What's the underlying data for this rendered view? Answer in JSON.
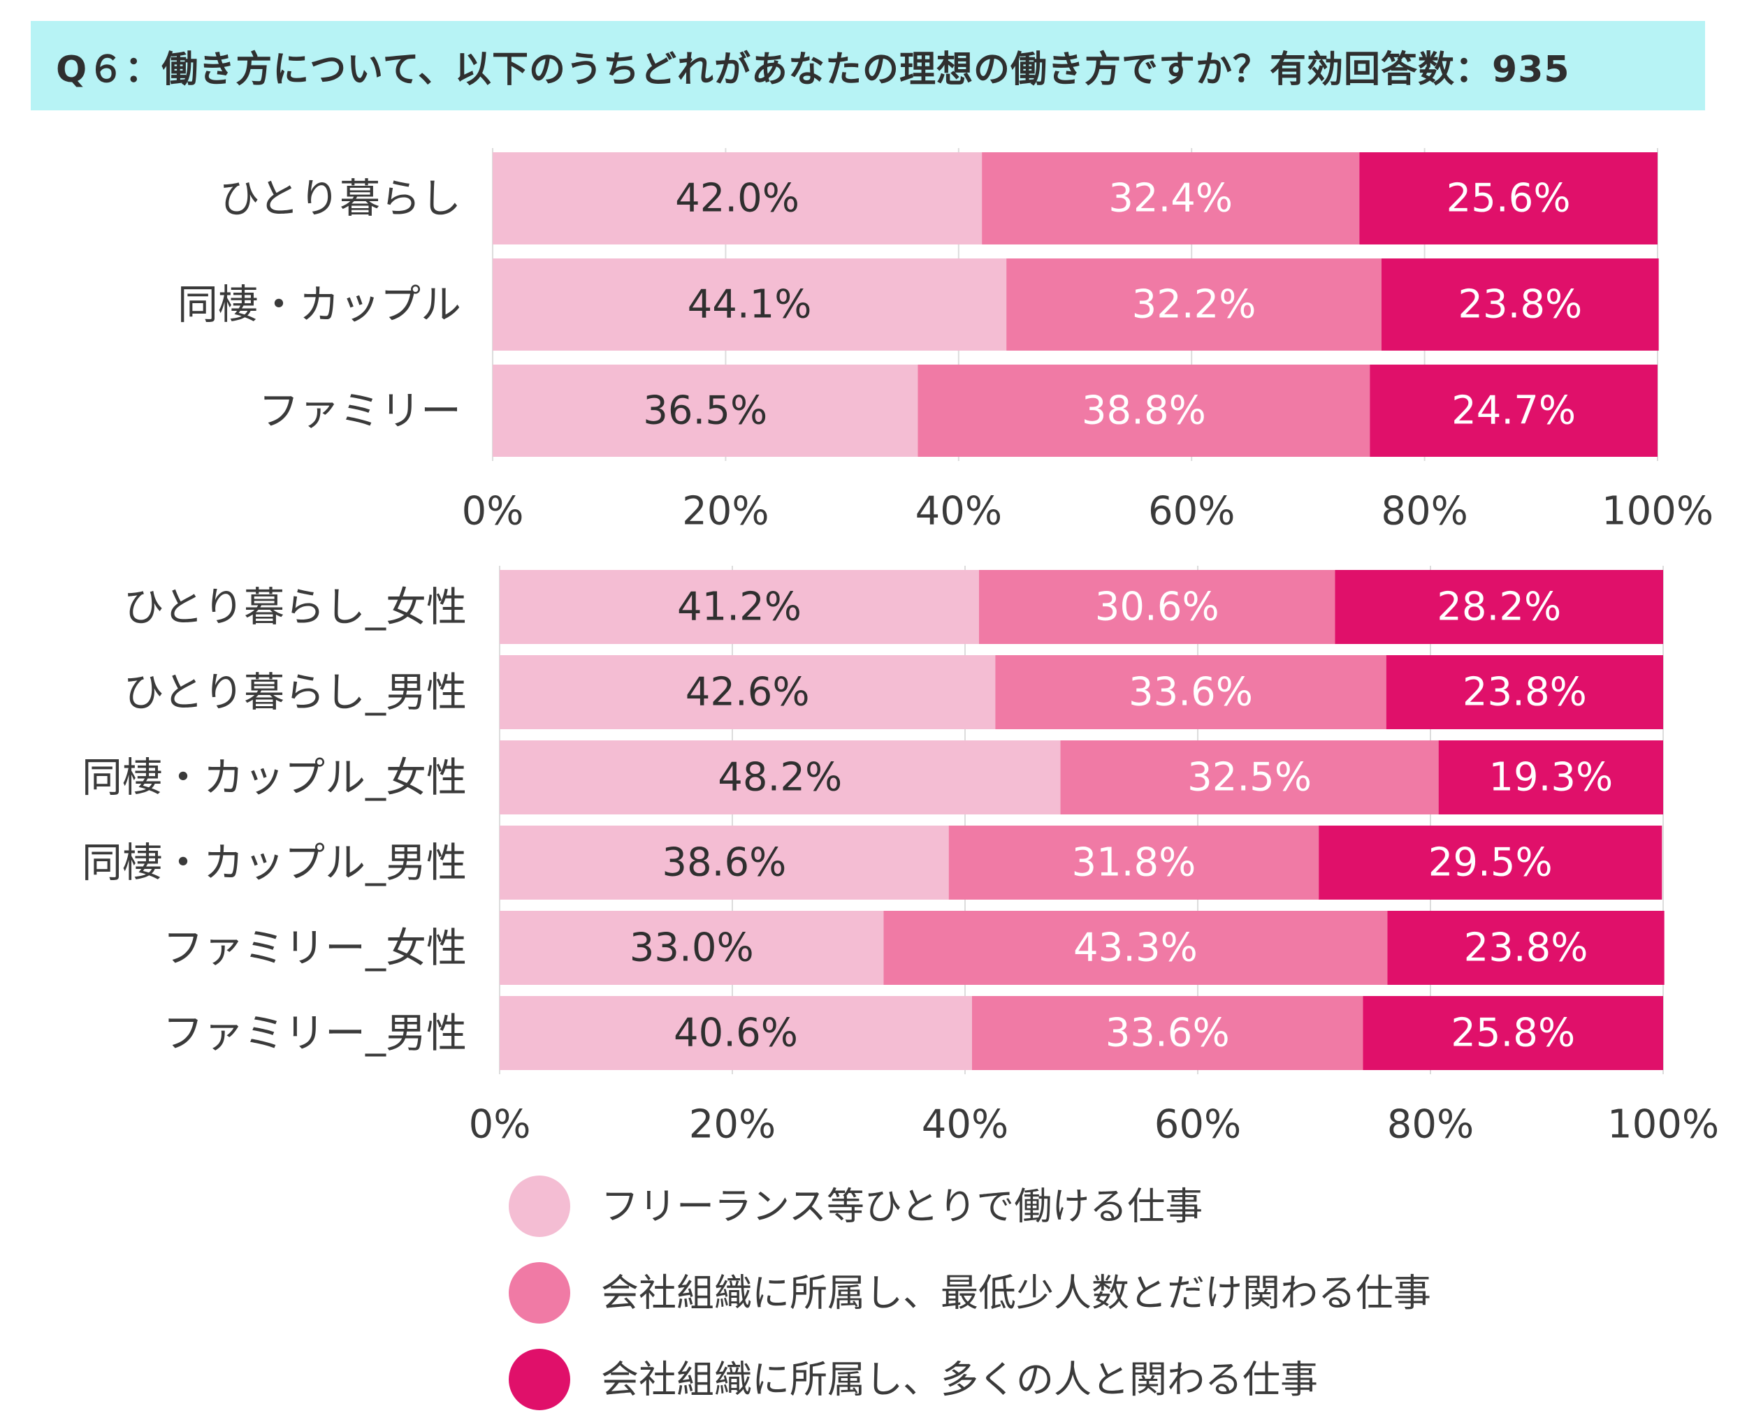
{
  "header": {
    "title": "Q６：働き方について、以下のうちどれがあなたの理想の働き方ですか？有効回答数：935"
  },
  "colors": {
    "series1": "#f4bdd3",
    "series2": "#f07aa5",
    "series3": "#e0106a",
    "label_dark": "#2f2f2f",
    "label_light": "#ffffff"
  },
  "chart_data": [
    {
      "type": "bar",
      "orientation": "horizontal",
      "stacked": true,
      "title": "",
      "xlim": [
        0,
        100
      ],
      "x_ticks": [
        "0%",
        "20%",
        "40%",
        "60%",
        "80%",
        "100%"
      ],
      "categories": [
        "ひとり暮らし",
        "同棲・カップル",
        "ファミリー"
      ],
      "series": [
        {
          "name": "フリーランス等ひとりで働ける仕事",
          "values": [
            42.0,
            44.1,
            36.5
          ],
          "labels": [
            "42.0%",
            "44.1%",
            "36.5%"
          ]
        },
        {
          "name": "会社組織に所属し、最低少人数とだけ関わる仕事",
          "values": [
            32.4,
            32.2,
            38.8
          ],
          "labels": [
            "32.4%",
            "32.2%",
            "38.8%"
          ]
        },
        {
          "name": "会社組織に所属し、多くの人と関わる仕事",
          "values": [
            25.6,
            23.8,
            24.7
          ],
          "labels": [
            "25.6%",
            "23.8%",
            "24.7%"
          ]
        }
      ]
    },
    {
      "type": "bar",
      "orientation": "horizontal",
      "stacked": true,
      "title": "",
      "xlim": [
        0,
        100
      ],
      "x_ticks": [
        "0%",
        "20%",
        "40%",
        "60%",
        "80%",
        "100%"
      ],
      "categories": [
        "ひとり暮らし_女性",
        "ひとり暮らし_男性",
        "同棲・カップル_女性",
        "同棲・カップル_男性",
        "ファミリー_女性",
        "ファミリー_男性"
      ],
      "series": [
        {
          "name": "フリーランス等ひとりで働ける仕事",
          "values": [
            41.2,
            42.6,
            48.2,
            38.6,
            33.0,
            40.6
          ],
          "labels": [
            "41.2%",
            "42.6%",
            "48.2%",
            "38.6%",
            "33.0%",
            "40.6%"
          ]
        },
        {
          "name": "会社組織に所属し、最低少人数とだけ関わる仕事",
          "values": [
            30.6,
            33.6,
            32.5,
            31.8,
            43.3,
            33.6
          ],
          "labels": [
            "30.6%",
            "33.6%",
            "32.5%",
            "31.8%",
            "43.3%",
            "33.6%"
          ]
        },
        {
          "name": "会社組織に所属し、多くの人と関わる仕事",
          "values": [
            28.2,
            23.8,
            19.3,
            29.5,
            23.8,
            25.8
          ],
          "labels": [
            "28.2%",
            "23.8%",
            "19.3%",
            "29.5%",
            "23.8%",
            "25.8%"
          ]
        }
      ]
    }
  ],
  "legend": {
    "position": "bottom",
    "items": [
      {
        "label": "フリーランス等ひとりで働ける仕事"
      },
      {
        "label": "会社組織に所属し、最低少人数とだけ関わる仕事"
      },
      {
        "label": "会社組織に所属し、多くの人と関わる仕事"
      }
    ]
  }
}
